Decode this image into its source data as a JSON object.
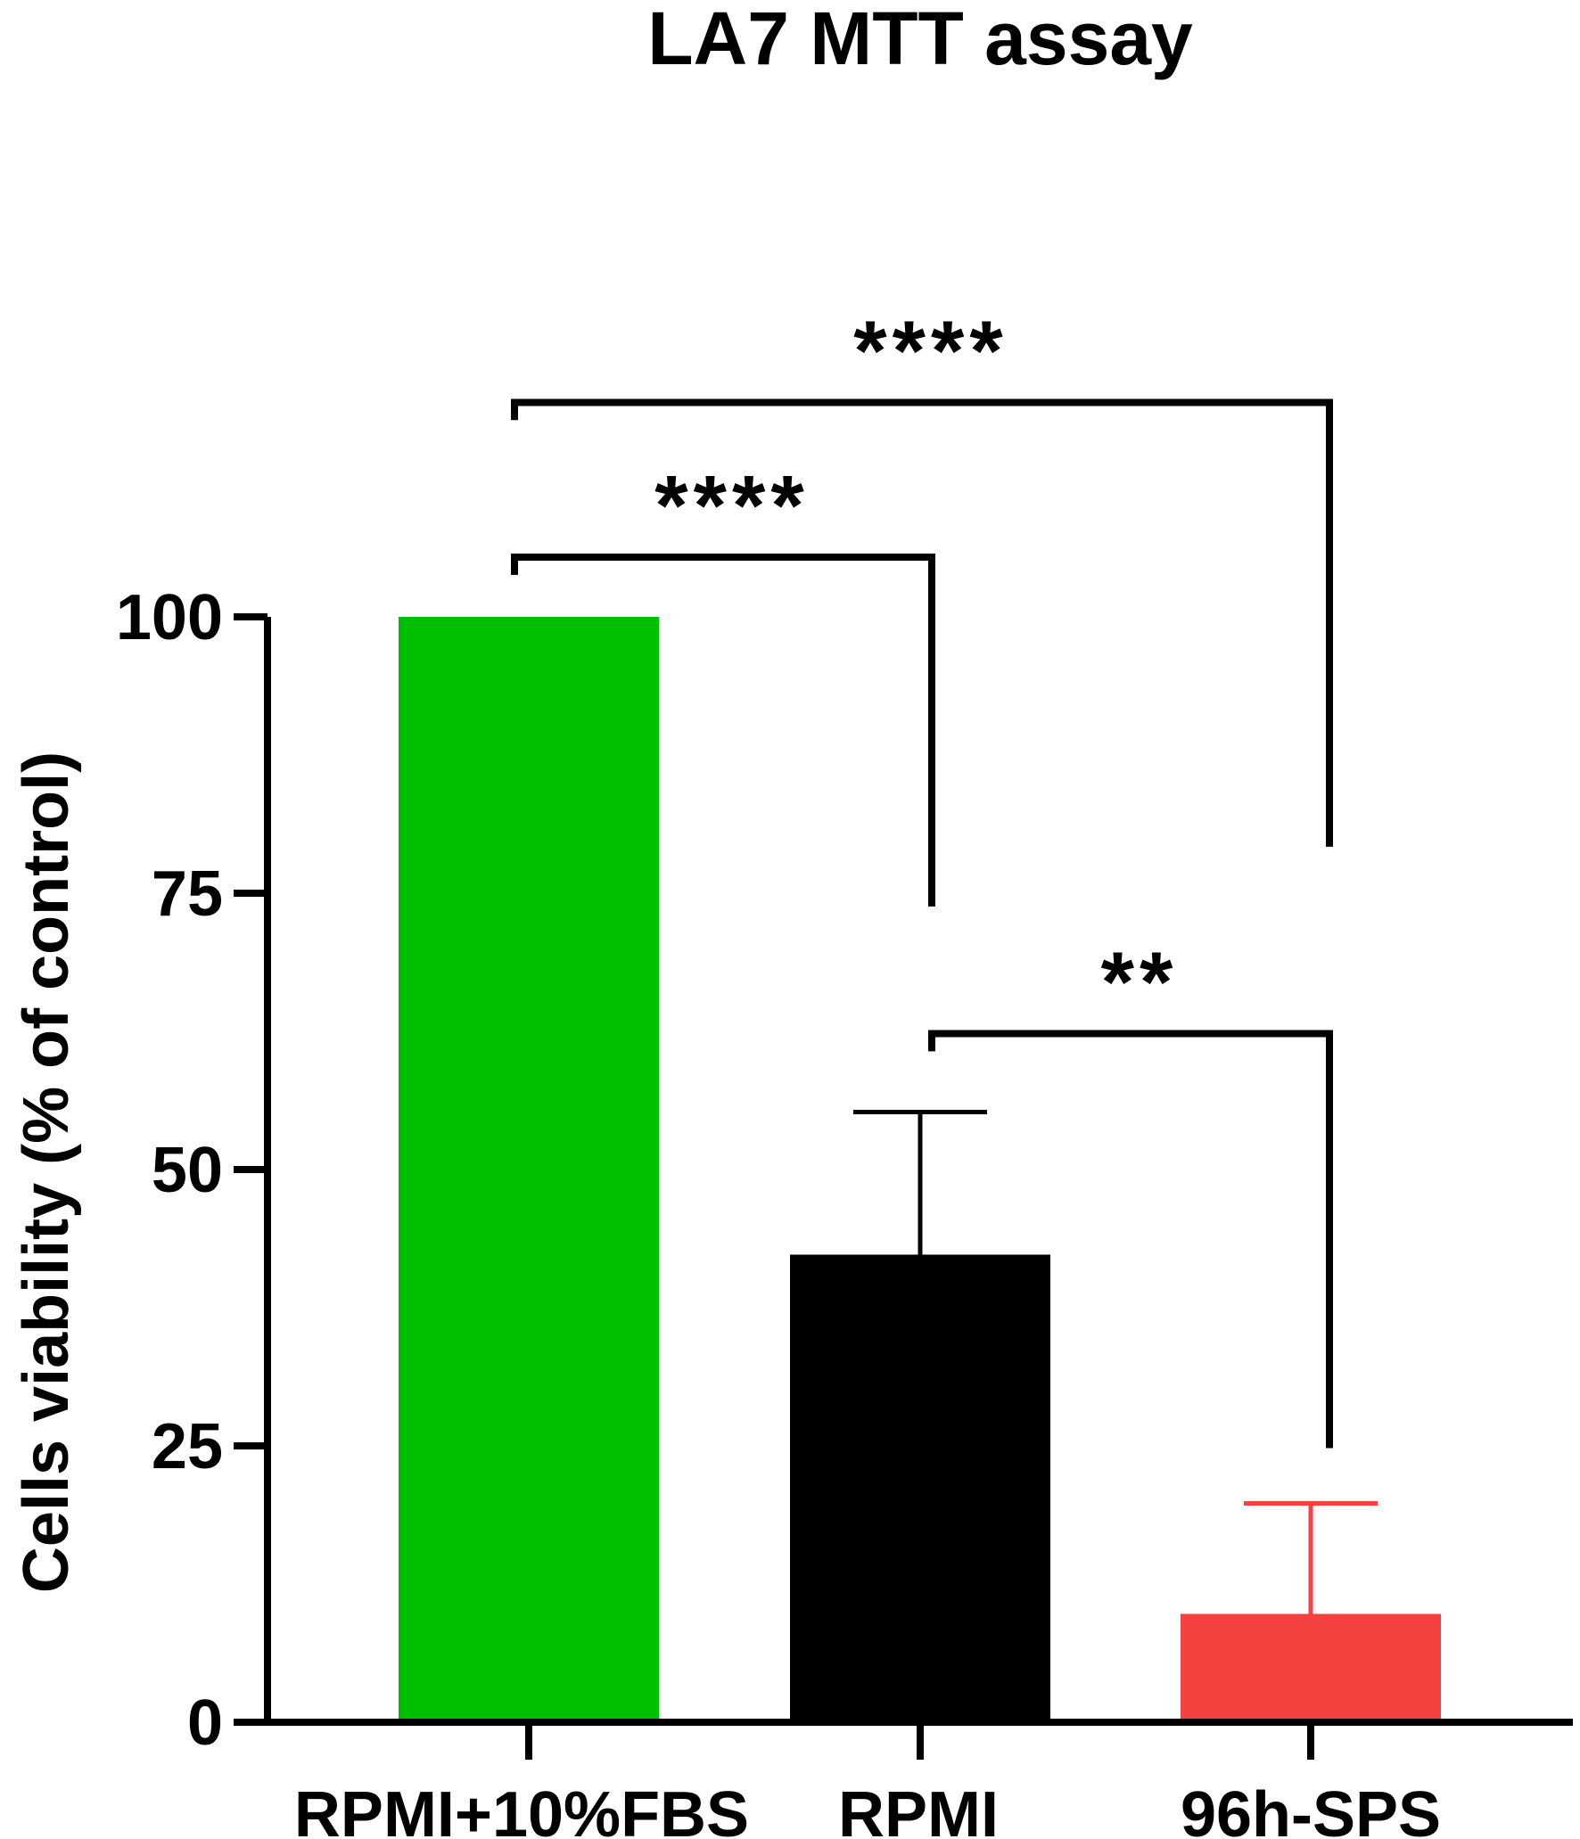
{
  "chart_data": {
    "type": "bar",
    "title": "LA7 MTT assay",
    "xlabel": "",
    "ylabel": "Cells viability (% of control)",
    "categories": [
      "RPMI+10%FBS",
      "RPMI",
      "96h-SPS"
    ],
    "values": [
      100,
      42.3,
      9.8
    ],
    "error_upper": [
      null,
      55.2,
      19.8
    ],
    "colors": [
      "#00BF00",
      "#000000",
      "#F64141"
    ],
    "error_colors": [
      "#000000",
      "#000000",
      "#F64141"
    ],
    "ylim": [
      0,
      100
    ],
    "yticks": [
      "0",
      "25",
      "50",
      "75",
      "100"
    ],
    "grid": false,
    "significance": [
      {
        "from": 0,
        "to": 1,
        "label": "****",
        "arm_y": [
          103.8,
          73.8
        ]
      },
      {
        "from": 0,
        "to": 2,
        "label": "****",
        "arm_y": [
          117.8,
          79.2
        ]
      },
      {
        "from": 1,
        "to": 2,
        "label": "**",
        "arm_y": [
          60.7,
          24.8
        ]
      }
    ]
  }
}
